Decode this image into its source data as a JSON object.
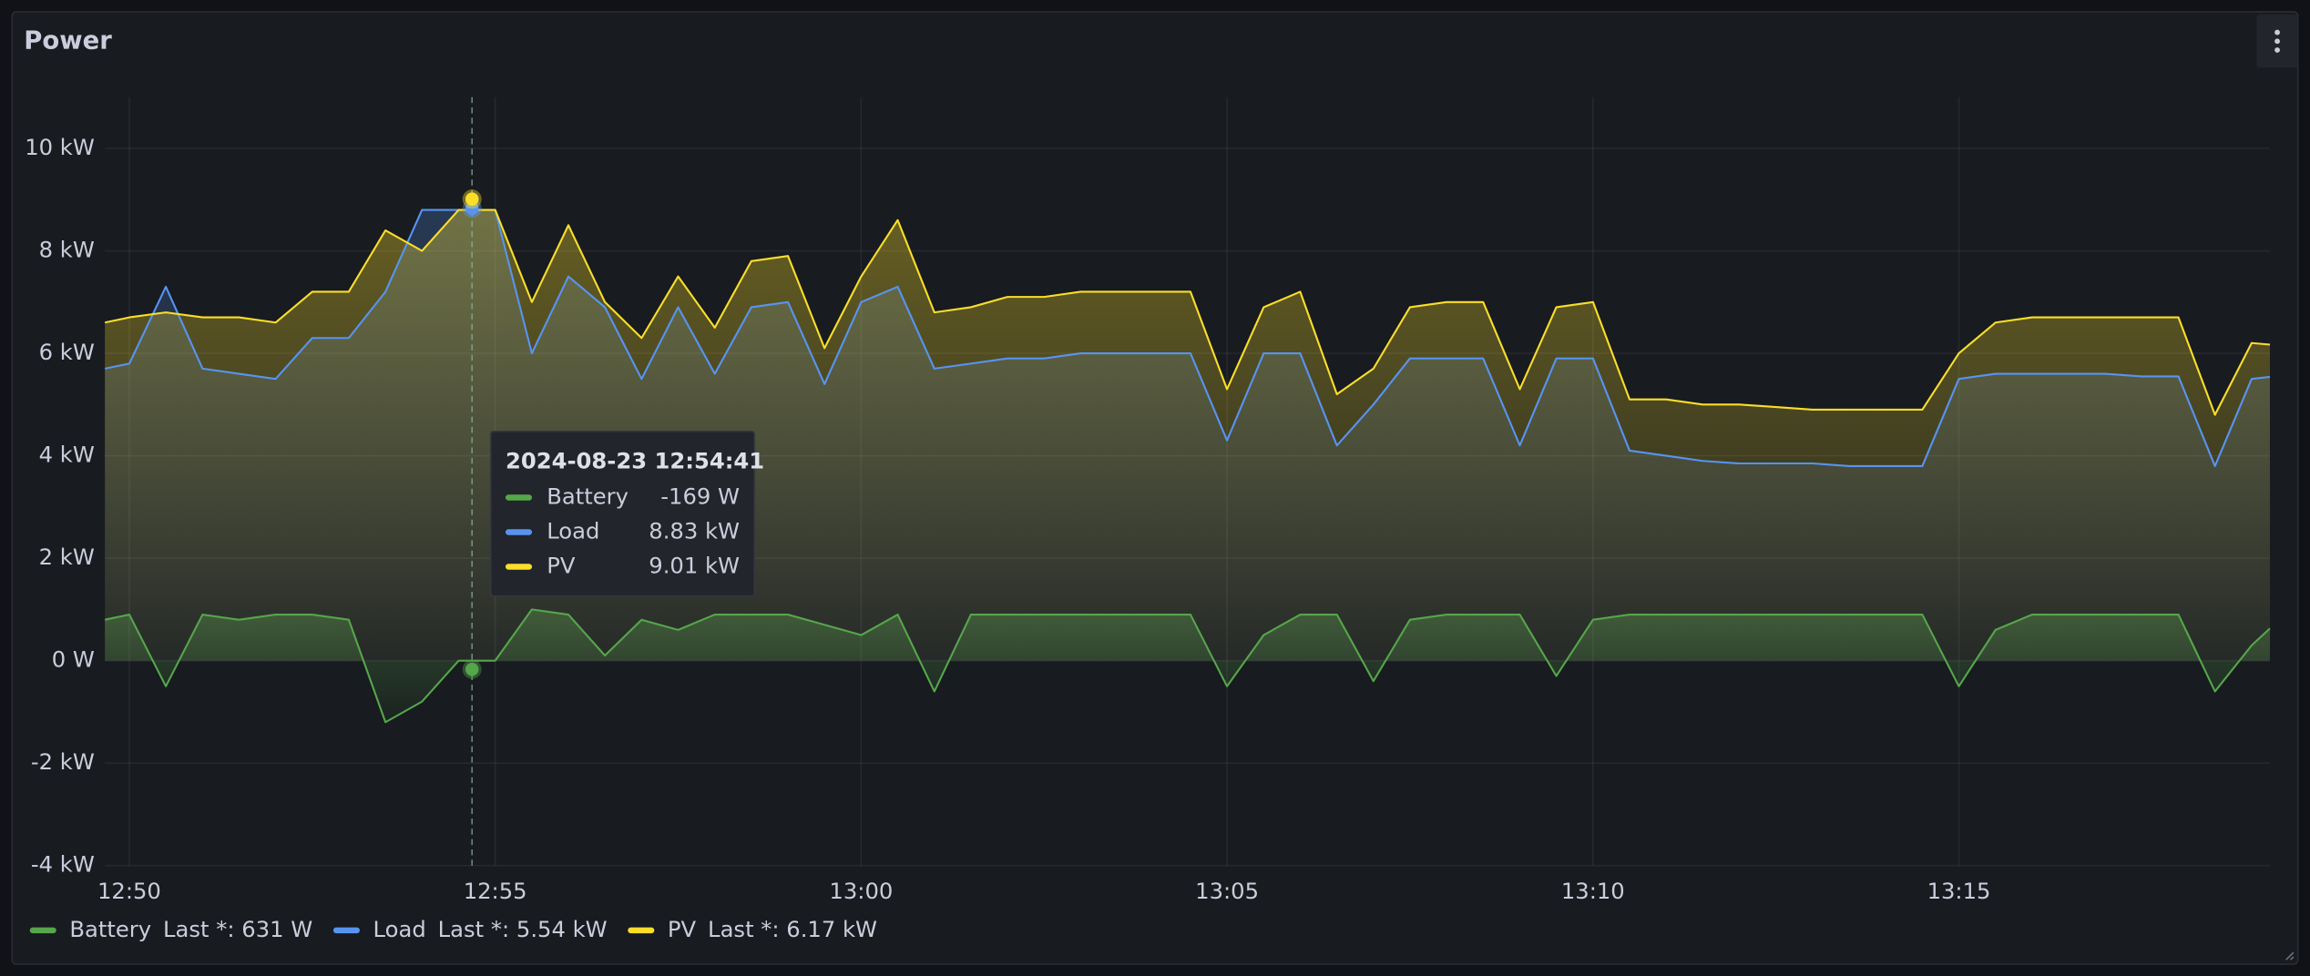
{
  "chart_data": {
    "type": "line",
    "title": "Power",
    "x": [
      "12:49:40",
      "12:50:00",
      "12:50:30",
      "12:51:00",
      "12:51:30",
      "12:52:00",
      "12:52:30",
      "12:53:00",
      "12:53:30",
      "12:54:00",
      "12:54:30",
      "12:55:00",
      "12:55:30",
      "12:56:00",
      "12:56:30",
      "12:57:00",
      "12:57:30",
      "12:58:00",
      "12:58:30",
      "12:59:00",
      "12:59:30",
      "13:00:00",
      "13:00:30",
      "13:01:00",
      "13:01:30",
      "13:02:00",
      "13:02:30",
      "13:03:00",
      "13:03:30",
      "13:04:00",
      "13:04:30",
      "13:05:00",
      "13:05:30",
      "13:06:00",
      "13:06:30",
      "13:07:00",
      "13:07:30",
      "13:08:00",
      "13:08:30",
      "13:09:00",
      "13:09:30",
      "13:10:00",
      "13:10:30",
      "13:11:00",
      "13:11:30",
      "13:12:00",
      "13:12:30",
      "13:13:00",
      "13:13:30",
      "13:14:00",
      "13:14:30",
      "13:15:00",
      "13:15:30",
      "13:16:00",
      "13:16:30",
      "13:17:00",
      "13:17:30",
      "13:18:00",
      "13:18:30",
      "13:19:00",
      "13:19:15"
    ],
    "xlim": [
      "12:49:40",
      "13:19:15"
    ],
    "xticks": [
      "12:50",
      "12:55",
      "13:00",
      "13:05",
      "13:10",
      "13:15"
    ],
    "ylim": [
      -4,
      11
    ],
    "yticks": [
      {
        "value": -4,
        "label": "-4 kW"
      },
      {
        "value": -2,
        "label": "-2 kW"
      },
      {
        "value": 0,
        "label": "0 W"
      },
      {
        "value": 2,
        "label": "2 kW"
      },
      {
        "value": 4,
        "label": "4 kW"
      },
      {
        "value": 6,
        "label": "6 kW"
      },
      {
        "value": 8,
        "label": "8 kW"
      },
      {
        "value": 10,
        "label": "10 kW"
      }
    ],
    "grid": true,
    "series": [
      {
        "name": "Battery",
        "color": "#56a64b",
        "legend_stat": "Last *: 631 W",
        "values": [
          0.8,
          0.9,
          -0.5,
          0.9,
          0.8,
          0.9,
          0.9,
          0.8,
          -1.2,
          -0.8,
          0.0,
          0.0,
          1.0,
          0.9,
          0.1,
          0.8,
          0.6,
          0.9,
          0.9,
          0.9,
          0.7,
          0.5,
          0.9,
          -0.6,
          0.9,
          0.9,
          0.9,
          0.9,
          0.9,
          0.9,
          0.9,
          -0.5,
          0.5,
          0.9,
          0.9,
          -0.4,
          0.8,
          0.9,
          0.9,
          0.9,
          -0.3,
          0.8,
          0.9,
          0.9,
          0.9,
          0.9,
          0.9,
          0.9,
          0.9,
          0.9,
          0.9,
          -0.5,
          0.6,
          0.9,
          0.9,
          0.9,
          0.9,
          0.9,
          -0.6,
          0.3,
          0.63
        ]
      },
      {
        "name": "Load",
        "color": "#5794f2",
        "legend_stat": "Last *: 5.54 kW",
        "values": [
          5.7,
          5.8,
          7.3,
          5.7,
          5.6,
          5.5,
          6.3,
          6.3,
          7.2,
          8.8,
          8.8,
          8.8,
          6.0,
          7.5,
          6.9,
          5.5,
          6.9,
          5.6,
          6.9,
          7.0,
          5.4,
          7.0,
          7.3,
          5.7,
          5.8,
          5.9,
          5.9,
          6.0,
          6.0,
          6.0,
          6.0,
          4.3,
          6.0,
          6.0,
          4.2,
          5.0,
          5.9,
          5.9,
          5.9,
          4.2,
          5.9,
          5.9,
          4.1,
          4.0,
          3.9,
          3.85,
          3.85,
          3.85,
          3.8,
          3.8,
          3.8,
          5.5,
          5.6,
          5.6,
          5.6,
          5.6,
          5.55,
          5.55,
          3.8,
          5.5,
          5.54
        ]
      },
      {
        "name": "PV",
        "color": "#fade2a",
        "legend_stat": "Last *: 6.17 kW",
        "values": [
          6.6,
          6.7,
          6.8,
          6.7,
          6.7,
          6.6,
          7.2,
          7.2,
          8.4,
          8.0,
          8.8,
          8.8,
          7.0,
          8.5,
          7.0,
          6.3,
          7.5,
          6.5,
          7.8,
          7.9,
          6.1,
          7.5,
          8.6,
          6.8,
          6.9,
          7.1,
          7.1,
          7.2,
          7.2,
          7.2,
          7.2,
          5.3,
          6.9,
          7.2,
          5.2,
          5.7,
          6.9,
          7.0,
          7.0,
          5.3,
          6.9,
          7.0,
          5.1,
          5.1,
          5.0,
          5.0,
          4.95,
          4.9,
          4.9,
          4.9,
          4.9,
          6.0,
          6.6,
          6.7,
          6.7,
          6.7,
          6.7,
          6.7,
          4.8,
          6.2,
          6.17
        ]
      }
    ],
    "tooltip": {
      "time": "2024-08-23 12:54:41",
      "values": [
        -0.169,
        8.83,
        9.01
      ],
      "value_labels": [
        "-169 W",
        "8.83 kW",
        "9.01 kW"
      ]
    }
  }
}
